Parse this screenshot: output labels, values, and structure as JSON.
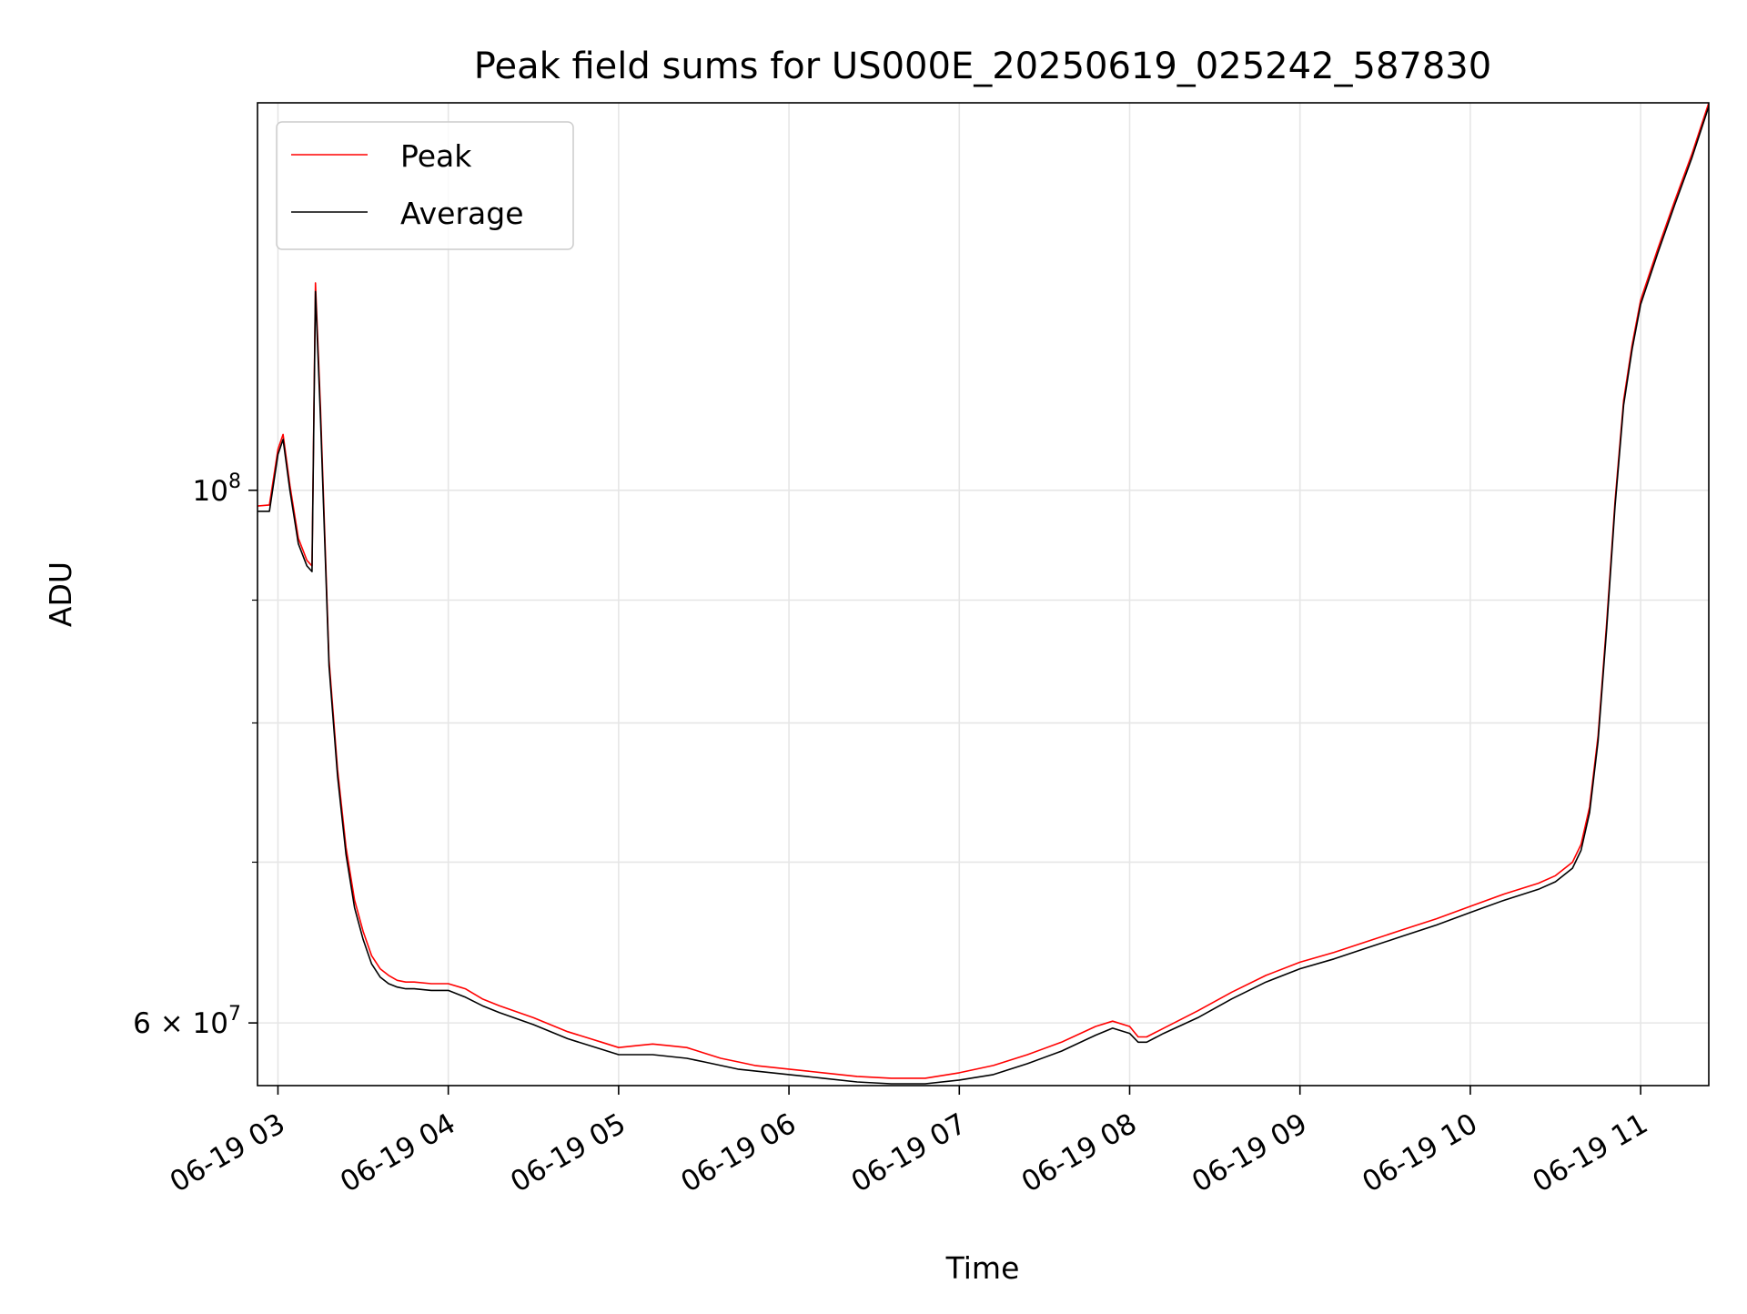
{
  "chart_data": {
    "type": "line",
    "title": "Peak field sums for US000E_20250619_025242_587830",
    "xlabel": "Time",
    "ylabel": "ADU",
    "x_unit": "hours (date 2025-06-19)",
    "xlim": [
      2.88,
      11.4
    ],
    "ylim": [
      56500000,
      145000000
    ],
    "y_scale": "log",
    "grid": true,
    "legend_position": "top-left",
    "x_ticks": [
      {
        "value": 3,
        "label": "06-19 03"
      },
      {
        "value": 4,
        "label": "06-19 04"
      },
      {
        "value": 5,
        "label": "06-19 05"
      },
      {
        "value": 6,
        "label": "06-19 06"
      },
      {
        "value": 7,
        "label": "06-19 07"
      },
      {
        "value": 8,
        "label": "06-19 08"
      },
      {
        "value": 9,
        "label": "06-19 09"
      },
      {
        "value": 10,
        "label": "06-19 10"
      },
      {
        "value": 11,
        "label": "06-19 11"
      }
    ],
    "y_major_ticks": [
      {
        "value": 60000000,
        "mantissa": "6",
        "exponent": "7"
      },
      {
        "value": 100000000,
        "mantissa": "",
        "exponent": "8"
      }
    ],
    "y_minor_ticks": [
      70000000,
      80000000,
      90000000
    ],
    "series": [
      {
        "name": "Peak",
        "color": "#ff0000",
        "x": [
          2.88,
          2.95,
          3.0,
          3.03,
          3.07,
          3.12,
          3.17,
          3.2,
          3.22,
          3.25,
          3.3,
          3.35,
          3.4,
          3.45,
          3.5,
          3.55,
          3.6,
          3.65,
          3.7,
          3.75,
          3.8,
          3.9,
          4.0,
          4.1,
          4.2,
          4.3,
          4.5,
          4.7,
          4.9,
          5.0,
          5.1,
          5.2,
          5.3,
          5.4,
          5.5,
          5.6,
          5.7,
          5.8,
          5.9,
          6.0,
          6.2,
          6.4,
          6.6,
          6.8,
          7.0,
          7.2,
          7.4,
          7.6,
          7.8,
          7.9,
          8.0,
          8.05,
          8.1,
          8.2,
          8.4,
          8.6,
          8.8,
          9.0,
          9.2,
          9.4,
          9.6,
          9.8,
          10.0,
          10.2,
          10.4,
          10.5,
          10.6,
          10.65,
          10.7,
          10.75,
          10.8,
          10.85,
          10.9,
          10.95,
          11.0,
          11.1,
          11.2,
          11.3,
          11.4
        ],
        "y": [
          98500000,
          98600000,
          104000000,
          105500000,
          100500000,
          95500000,
          93500000,
          93000000,
          122000000,
          108000000,
          85000000,
          76500000,
          71000000,
          67500000,
          65500000,
          64000000,
          63200000,
          62800000,
          62500000,
          62400000,
          62400000,
          62300000,
          62300000,
          62000000,
          61400000,
          61000000,
          60300000,
          59500000,
          58900000,
          58600000,
          58700000,
          58800000,
          58700000,
          58600000,
          58300000,
          58000000,
          57800000,
          57600000,
          57500000,
          57400000,
          57200000,
          57000000,
          56900000,
          56900000,
          57200000,
          57600000,
          58200000,
          58900000,
          59800000,
          60100000,
          59800000,
          59200000,
          59200000,
          59700000,
          60700000,
          61800000,
          62800000,
          63600000,
          64200000,
          64900000,
          65600000,
          66300000,
          67100000,
          67900000,
          68600000,
          69100000,
          70000000,
          71200000,
          73800000,
          79000000,
          88000000,
          99000000,
          109000000,
          115000000,
          120000000,
          126000000,
          132000000,
          138000000,
          145000000
        ]
      },
      {
        "name": "Average",
        "color": "#000000",
        "x": [
          2.88,
          2.95,
          3.0,
          3.03,
          3.07,
          3.12,
          3.17,
          3.2,
          3.22,
          3.25,
          3.3,
          3.35,
          3.4,
          3.45,
          3.5,
          3.55,
          3.6,
          3.65,
          3.7,
          3.75,
          3.8,
          3.9,
          4.0,
          4.1,
          4.2,
          4.3,
          4.5,
          4.7,
          4.9,
          5.0,
          5.1,
          5.2,
          5.3,
          5.4,
          5.5,
          5.6,
          5.7,
          5.8,
          5.9,
          6.0,
          6.2,
          6.4,
          6.6,
          6.8,
          7.0,
          7.2,
          7.4,
          7.6,
          7.8,
          7.9,
          8.0,
          8.05,
          8.1,
          8.2,
          8.4,
          8.6,
          8.8,
          9.0,
          9.2,
          9.4,
          9.6,
          9.8,
          10.0,
          10.2,
          10.4,
          10.5,
          10.6,
          10.65,
          10.7,
          10.75,
          10.8,
          10.85,
          10.9,
          10.95,
          11.0,
          11.1,
          11.2,
          11.3,
          11.4
        ],
        "y": [
          98000000,
          98000000,
          103500000,
          105000000,
          100000000,
          95000000,
          93000000,
          92500000,
          121000000,
          107000000,
          84500000,
          76000000,
          70500000,
          67000000,
          65000000,
          63500000,
          62700000,
          62300000,
          62100000,
          62000000,
          62000000,
          61900000,
          61900000,
          61500000,
          61000000,
          60600000,
          59900000,
          59100000,
          58500000,
          58200000,
          58200000,
          58200000,
          58100000,
          58000000,
          57800000,
          57600000,
          57400000,
          57300000,
          57200000,
          57100000,
          56900000,
          56700000,
          56600000,
          56600000,
          56800000,
          57100000,
          57700000,
          58400000,
          59300000,
          59700000,
          59400000,
          58900000,
          58900000,
          59400000,
          60300000,
          61400000,
          62400000,
          63200000,
          63800000,
          64500000,
          65200000,
          65900000,
          66700000,
          67500000,
          68200000,
          68700000,
          69600000,
          70800000,
          73400000,
          78600000,
          87500000,
          98500000,
          108500000,
          114500000,
          119500000,
          125500000,
          131500000,
          137500000,
          144500000
        ]
      }
    ]
  }
}
